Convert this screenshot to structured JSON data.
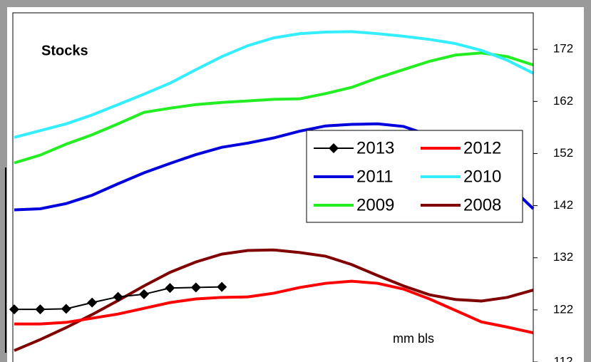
{
  "chart_data": {
    "type": "line",
    "title": "Stocks",
    "annotation": "mm bls",
    "categories": [
      null,
      null,
      null,
      null,
      null,
      null,
      null,
      null,
      null,
      null,
      null,
      null,
      null,
      null,
      null,
      null,
      null,
      null,
      null,
      null,
      null
    ],
    "ylim": [
      112,
      179
    ],
    "yticks": [
      112,
      122,
      132,
      142,
      152,
      162,
      172
    ],
    "y_axis_side": "right",
    "legend": "upper right",
    "series": [
      {
        "name": "2013",
        "color": "#000000",
        "marker": "diamond",
        "values": [
          122.1,
          122.1,
          122.2,
          123.4,
          124.5,
          125.0,
          126.2,
          126.3,
          126.4,
          null,
          null,
          null,
          null,
          null,
          null,
          null,
          null,
          null,
          null,
          null,
          null
        ]
      },
      {
        "name": "2012",
        "color": "#ff0000",
        "values": [
          119.3,
          119.3,
          119.6,
          120.4,
          121.2,
          122.3,
          123.4,
          124.1,
          124.4,
          124.5,
          125.2,
          126.3,
          127.1,
          127.5,
          127.1,
          126.0,
          124.1,
          121.9,
          119.7,
          118.7,
          117.6
        ]
      },
      {
        "name": "2011",
        "color": "#0000dd",
        "values": [
          141.2,
          141.4,
          142.4,
          144.0,
          146.2,
          148.3,
          150.1,
          151.8,
          153.2,
          154.0,
          155.0,
          156.3,
          157.3,
          157.6,
          157.7,
          157.2,
          155.5,
          153.3,
          150.6,
          146.2,
          141.4
        ]
      },
      {
        "name": "2010",
        "color": "#33eeff",
        "values": [
          155.1,
          156.4,
          157.7,
          159.4,
          161.4,
          163.4,
          165.5,
          168.1,
          170.6,
          172.7,
          174.2,
          175.0,
          175.3,
          175.4,
          175.0,
          174.5,
          173.9,
          173.1,
          171.8,
          169.9,
          167.4
        ]
      },
      {
        "name": "2009",
        "color": "#22ee22",
        "values": [
          150.2,
          151.7,
          153.8,
          155.6,
          157.7,
          159.9,
          160.7,
          161.4,
          161.8,
          162.1,
          162.4,
          162.5,
          163.5,
          164.7,
          166.5,
          168.1,
          169.7,
          170.9,
          171.3,
          170.6,
          169.0
        ]
      },
      {
        "name": "2008",
        "color": "#800000",
        "values": [
          114.2,
          116.3,
          118.6,
          121.1,
          123.8,
          126.6,
          129.2,
          131.2,
          132.7,
          133.4,
          133.5,
          133.0,
          132.3,
          130.7,
          128.6,
          126.6,
          124.9,
          124.0,
          123.7,
          124.4,
          125.8
        ]
      }
    ]
  }
}
